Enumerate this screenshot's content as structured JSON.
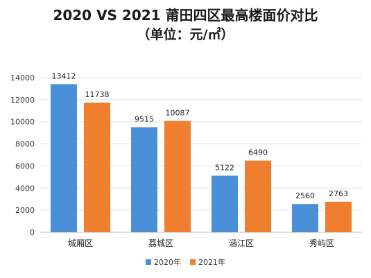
{
  "chart_data": {
    "type": "bar",
    "title": "2020 VS 2021 莆田四区最高楼面价对比",
    "subtitle": "（单位：元/㎡）",
    "categories": [
      "城厢区",
      "荔城区",
      "涵江区",
      "秀屿区"
    ],
    "series": [
      {
        "name": "2020年",
        "values": [
          13412,
          9515,
          5122,
          2560
        ],
        "color": "#4a90d9"
      },
      {
        "name": "2021年",
        "values": [
          11738,
          10087,
          6490,
          2763
        ],
        "color": "#ef7f2e"
      }
    ],
    "ylim": [
      0,
      14000
    ],
    "yticks": [
      0,
      2000,
      4000,
      6000,
      8000,
      10000,
      12000,
      14000
    ],
    "grid": true,
    "legend": "bottom-right"
  }
}
